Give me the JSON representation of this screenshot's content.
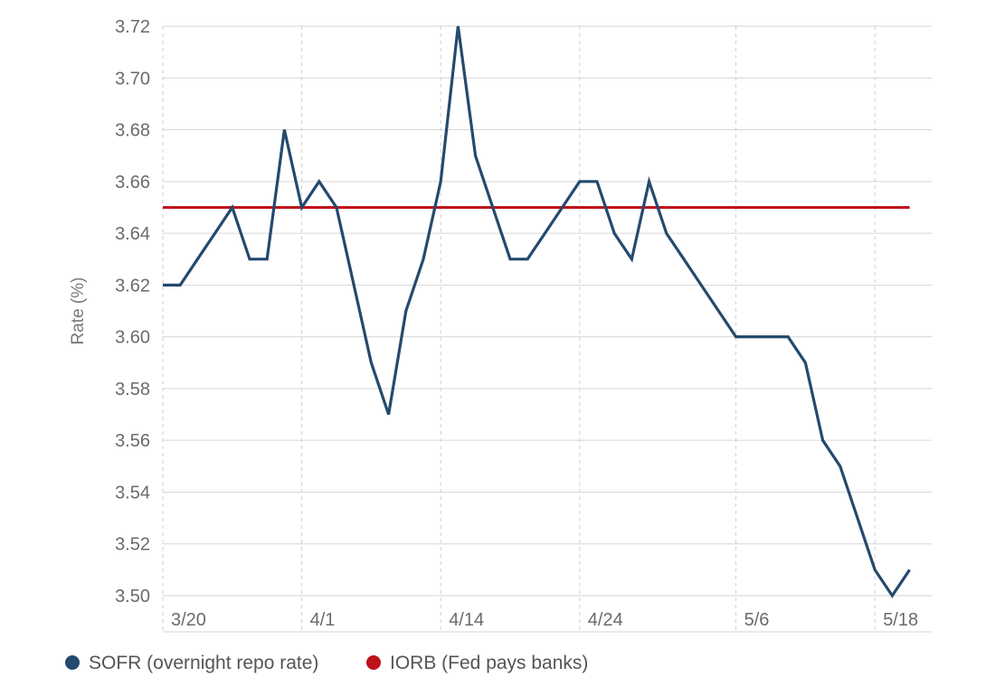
{
  "chart_data": {
    "type": "line",
    "title": "",
    "xlabel": "",
    "ylabel": "Rate (%)",
    "ylim": [
      3.5,
      3.72
    ],
    "y_ticks": [
      "3.50",
      "3.52",
      "3.54",
      "3.56",
      "3.58",
      "3.60",
      "3.62",
      "3.64",
      "3.66",
      "3.68",
      "3.70",
      "3.72"
    ],
    "x_ticks": [
      "3/20",
      "4/1",
      "4/14",
      "4/24",
      "5/6",
      "5/18"
    ],
    "grid": true,
    "legend_position": "bottom-left",
    "series": [
      {
        "name": "SOFR (overnight repo rate)",
        "color": "#244a6e",
        "values": [
          3.62,
          3.62,
          3.63,
          3.64,
          3.65,
          3.63,
          3.63,
          3.68,
          3.65,
          3.66,
          3.65,
          3.62,
          3.59,
          3.57,
          3.61,
          3.63,
          3.66,
          3.72,
          3.67,
          3.65,
          3.63,
          3.63,
          3.64,
          3.65,
          3.66,
          3.66,
          3.64,
          3.63,
          3.66,
          3.64,
          3.63,
          3.62,
          3.61,
          3.6,
          3.6,
          3.6,
          3.6,
          3.59,
          3.56,
          3.55,
          3.53,
          3.51,
          3.5,
          3.51
        ]
      },
      {
        "name": "IORB (Fed pays banks)",
        "color": "#c0121b",
        "values": [
          3.65,
          3.65,
          3.65,
          3.65,
          3.65,
          3.65,
          3.65,
          3.65,
          3.65,
          3.65,
          3.65,
          3.65,
          3.65,
          3.65,
          3.65,
          3.65,
          3.65,
          3.65,
          3.65,
          3.65,
          3.65,
          3.65,
          3.65,
          3.65,
          3.65,
          3.65,
          3.65,
          3.65,
          3.65,
          3.65,
          3.65,
          3.65,
          3.65,
          3.65,
          3.65,
          3.65,
          3.65,
          3.65,
          3.65,
          3.65,
          3.65,
          3.65,
          3.65,
          3.65
        ]
      }
    ]
  }
}
